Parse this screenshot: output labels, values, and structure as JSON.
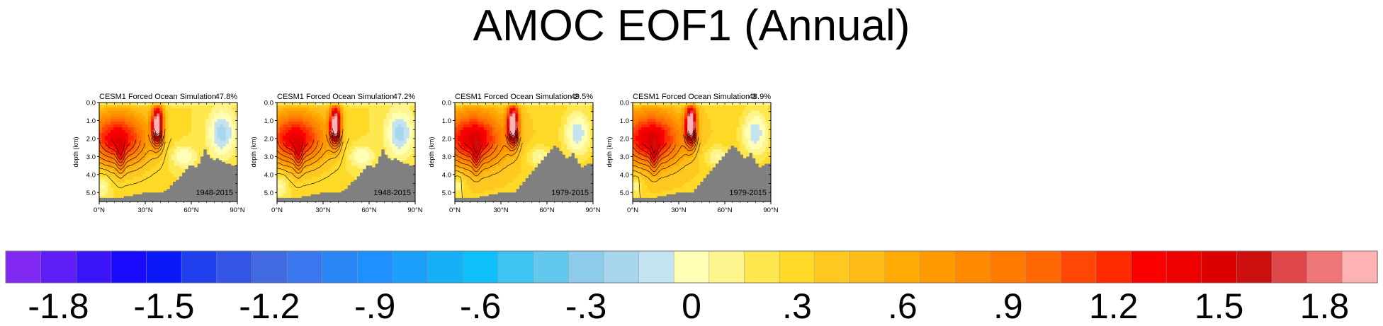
{
  "title": "AMOC EOF1 (Annual)",
  "colors": {
    "background": "#ffffff",
    "bathymetry": "#808080",
    "contour": "#000000",
    "palette": [
      "#8128f2",
      "#5f1ef5",
      "#3c14f8",
      "#1a0afb",
      "#0b19f8",
      "#2040ee",
      "#3355e6",
      "#4169e1",
      "#3b78ef",
      "#2a85f5",
      "#1f90ff",
      "#1aa0fb",
      "#16b0f9",
      "#10c0fb",
      "#3ec4f2",
      "#62c8ee",
      "#8dcdeb",
      "#a8d6ec",
      "#c3e3f3",
      "#ffffb5",
      "#fff58e",
      "#ffe84f",
      "#ffd927",
      "#ffc821",
      "#ffbc18",
      "#ffaa05",
      "#ff9a00",
      "#ff8a00",
      "#ff7c00",
      "#ff6804",
      "#ff4605",
      "#ff2a00",
      "#fa0000",
      "#ed0000",
      "#dd0000",
      "#cc1010",
      "#e0474a",
      "#ee7676",
      "#ffb2b2"
    ]
  },
  "chart_data": {
    "type": "heatmap",
    "title": "AMOC EOF1 (Annual)",
    "panels": [
      {
        "title": "CESM1 Forced Ocean Simulation",
        "pct": "47.8%",
        "period": "1948-2015",
        "seabed_depth_km": [
          5.3,
          5.3,
          5.3,
          5.3,
          5.3,
          5.3,
          5.3,
          5.3,
          5.2,
          5.2,
          5.2,
          5.1,
          5.1,
          5.1,
          5.0,
          5.0,
          5.0,
          5.0,
          5.0,
          5.0,
          5.0,
          4.9,
          4.8,
          4.6,
          4.4,
          4.3,
          4.1,
          3.9,
          3.7,
          3.5,
          3.5,
          3.6,
          3.4,
          3.0,
          2.6,
          2.9,
          3.1,
          3.2,
          3.1,
          3.2,
          3.3,
          3.4,
          3.4,
          3.5,
          3.5
        ]
      },
      {
        "title": "CESM1 Forced Ocean Simulation",
        "pct": "47.2%",
        "period": "1948-2015",
        "seabed_depth_km": [
          5.3,
          5.3,
          5.3,
          5.3,
          5.3,
          5.3,
          5.3,
          5.3,
          5.2,
          5.2,
          5.2,
          5.1,
          5.1,
          5.1,
          5.0,
          5.0,
          5.0,
          5.0,
          5.0,
          5.0,
          5.0,
          4.9,
          4.8,
          4.6,
          4.4,
          4.3,
          4.1,
          3.9,
          3.7,
          3.5,
          3.5,
          3.6,
          3.4,
          3.0,
          2.6,
          2.9,
          3.1,
          3.2,
          3.1,
          3.2,
          3.3,
          3.4,
          3.4,
          3.5,
          3.5
        ]
      },
      {
        "title": "CESM1 Forced Ocean Simulation 2",
        "pct": "49.5%",
        "period": "1979-2015",
        "seabed_depth_km": [
          5.3,
          5.3,
          5.3,
          5.3,
          5.3,
          5.3,
          5.3,
          5.3,
          5.2,
          5.2,
          5.2,
          5.1,
          5.1,
          5.1,
          5.0,
          5.0,
          5.0,
          5.0,
          5.0,
          5.0,
          4.8,
          4.6,
          4.4,
          4.2,
          4.0,
          3.8,
          3.6,
          3.4,
          3.2,
          3.0,
          2.8,
          2.6,
          2.4,
          2.5,
          2.7,
          2.9,
          3.1,
          3.0,
          2.8,
          3.1,
          3.4,
          3.6,
          3.5,
          3.4,
          3.4
        ]
      },
      {
        "title": "CESM1 Forced Ocean Simulation 3",
        "pct": "48.9%",
        "period": "1979-2015",
        "seabed_depth_km": [
          5.3,
          5.3,
          5.3,
          5.3,
          5.3,
          5.3,
          5.3,
          5.3,
          5.2,
          5.2,
          5.2,
          5.1,
          5.1,
          5.1,
          5.0,
          5.0,
          5.0,
          5.0,
          5.0,
          5.0,
          4.8,
          4.6,
          4.4,
          4.2,
          4.0,
          3.8,
          3.6,
          3.4,
          3.2,
          3.0,
          2.8,
          2.6,
          2.4,
          2.5,
          2.7,
          2.9,
          3.1,
          3.0,
          2.8,
          3.1,
          3.4,
          3.6,
          3.5,
          3.4,
          3.4
        ]
      }
    ],
    "x_axis": {
      "label": "",
      "range": [
        0,
        90
      ],
      "ticks": [
        "0°N",
        "30°N",
        "60°N",
        "90°N"
      ]
    },
    "y_axis": {
      "label": "depth (km)",
      "range": [
        0.0,
        5.5
      ],
      "ticks": [
        "0.0",
        "1.0",
        "2.0",
        "3.0",
        "4.0",
        "5.0"
      ]
    },
    "field": {
      "description": "first EOF of AMOC streamfunction",
      "max_lat": 38,
      "max_depth_km": 1.2,
      "max_value": 1.9,
      "contour_levels": [
        0.3,
        0.45,
        0.6,
        0.75,
        0.9,
        1.05,
        1.2,
        1.35,
        1.5,
        1.65,
        1.8
      ]
    },
    "colorbar": {
      "min": -1.95,
      "max": 1.95,
      "step": 0.1,
      "labels": [
        "-1.8",
        "-1.5",
        "-1.2",
        "-.9",
        "-.6",
        "-.3",
        "0",
        ".3",
        ".6",
        ".9",
        "1.2",
        "1.5",
        "1.8"
      ]
    }
  }
}
